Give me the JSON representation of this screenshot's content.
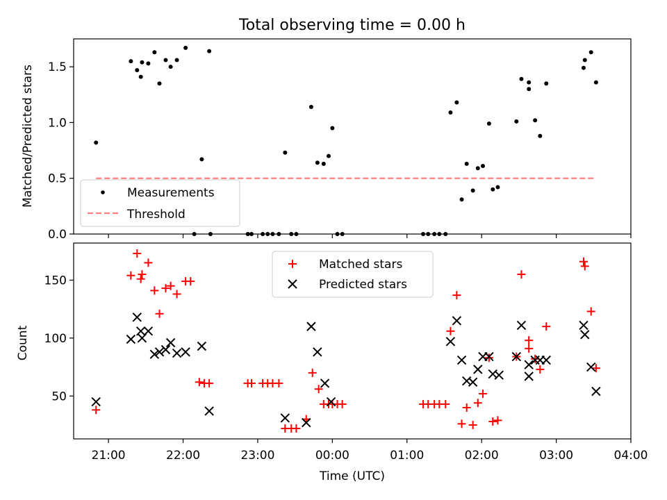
{
  "figure": {
    "title": "Total observing time = 0.00 h",
    "xlabel": "Time (UTC)"
  },
  "chart_data": [
    {
      "type": "scatter",
      "ylabel": "Matched/Predicted stars",
      "xlim": [
        "20:32",
        "04:00"
      ],
      "ylim": [
        0,
        1.75
      ],
      "yticks": [
        0.0,
        0.5,
        1.0,
        1.5
      ],
      "ytick_labels": [
        "0.0",
        "0.5",
        "1.0",
        "1.5"
      ],
      "grid": false,
      "legend": {
        "placement": "lower-left",
        "entries": [
          "Measurements",
          "Threshold"
        ]
      },
      "colors": {
        "Measurements": "#000000",
        "Threshold": "#ff7f7f"
      },
      "series": [
        {
          "name": "Measurements",
          "marker": "dot",
          "points": [
            [
              "20:50",
              0.82
            ],
            [
              "21:18",
              1.55
            ],
            [
              "21:23",
              1.47
            ],
            [
              "21:26",
              1.41
            ],
            [
              "21:27",
              1.54
            ],
            [
              "21:32",
              1.53
            ],
            [
              "21:37",
              1.63
            ],
            [
              "21:41",
              1.35
            ],
            [
              "21:46",
              1.56
            ],
            [
              "21:50",
              1.5
            ],
            [
              "21:55",
              1.56
            ],
            [
              "22:02",
              1.67
            ],
            [
              "22:09",
              0.0
            ],
            [
              "22:15",
              0.67
            ],
            [
              "22:21",
              1.64
            ],
            [
              "22:22",
              0.0
            ],
            [
              "22:52",
              0.0
            ],
            [
              "22:55",
              0.0
            ],
            [
              "23:04",
              0.0
            ],
            [
              "23:08",
              0.0
            ],
            [
              "23:12",
              0.0
            ],
            [
              "23:17",
              0.0
            ],
            [
              "23:22",
              0.73
            ],
            [
              "23:27",
              0.0
            ],
            [
              "23:31",
              0.0
            ],
            [
              "23:43",
              1.14
            ],
            [
              "23:48",
              0.64
            ],
            [
              "23:53",
              0.63
            ],
            [
              "23:57",
              0.7
            ],
            [
              "00:00",
              0.95
            ],
            [
              "00:04",
              0.0
            ],
            [
              "00:08",
              0.0
            ],
            [
              "01:13",
              0.0
            ],
            [
              "01:17",
              0.0
            ],
            [
              "01:22",
              0.0
            ],
            [
              "01:26",
              0.0
            ],
            [
              "01:31",
              0.0
            ],
            [
              "01:35",
              1.09
            ],
            [
              "01:40",
              1.18
            ],
            [
              "01:44",
              0.31
            ],
            [
              "01:48",
              0.63
            ],
            [
              "01:53",
              0.39
            ],
            [
              "01:57",
              0.59
            ],
            [
              "02:01",
              0.61
            ],
            [
              "02:06",
              0.99
            ],
            [
              "02:09",
              0.4
            ],
            [
              "02:13",
              0.42
            ],
            [
              "02:28",
              1.01
            ],
            [
              "02:32",
              1.39
            ],
            [
              "02:38",
              1.36
            ],
            [
              "02:38",
              1.3
            ],
            [
              "02:43",
              1.02
            ],
            [
              "02:47",
              0.88
            ],
            [
              "02:52",
              1.35
            ],
            [
              "03:22",
              1.49
            ],
            [
              "03:23",
              1.56
            ],
            [
              "03:28",
              1.63
            ],
            [
              "03:32",
              1.36
            ]
          ]
        },
        {
          "name": "Threshold",
          "type": "line",
          "style": "dashed",
          "points": [
            [
              "20:50",
              0.5
            ],
            [
              "03:32",
              0.5
            ]
          ]
        }
      ]
    },
    {
      "type": "scatter",
      "ylabel": "Count",
      "xlim": [
        "20:32",
        "04:00"
      ],
      "ylim": [
        13,
        182
      ],
      "yticks": [
        50,
        100,
        150
      ],
      "ytick_labels": [
        "50",
        "100",
        "150"
      ],
      "xticks": [
        "21:00",
        "22:00",
        "23:00",
        "00:00",
        "01:00",
        "02:00",
        "03:00",
        "04:00"
      ],
      "xtick_labels": [
        "21:00",
        "22:00",
        "23:00",
        "00:00",
        "01:00",
        "02:00",
        "03:00",
        "04:00"
      ],
      "grid": false,
      "legend": {
        "placement": "top-center",
        "entries": [
          "Matched stars",
          "Predicted stars"
        ]
      },
      "colors": {
        "Matched stars": "#ff0000",
        "Predicted stars": "#000000"
      },
      "series": [
        {
          "name": "Matched stars",
          "marker": "plus",
          "points": [
            [
              "20:50",
              38
            ],
            [
              "21:18",
              154
            ],
            [
              "21:23",
              173
            ],
            [
              "21:26",
              151
            ],
            [
              "21:27",
              155
            ],
            [
              "21:32",
              165
            ],
            [
              "21:37",
              141
            ],
            [
              "21:41",
              121
            ],
            [
              "21:46",
              143
            ],
            [
              "21:50",
              145
            ],
            [
              "21:55",
              138
            ],
            [
              "22:02",
              149
            ],
            [
              "22:06",
              149
            ],
            [
              "22:13",
              62
            ],
            [
              "22:17",
              61
            ],
            [
              "22:21",
              61
            ],
            [
              "22:52",
              61
            ],
            [
              "22:55",
              61
            ],
            [
              "23:04",
              61
            ],
            [
              "23:08",
              61
            ],
            [
              "23:12",
              61
            ],
            [
              "23:17",
              61
            ],
            [
              "23:22",
              22
            ],
            [
              "23:27",
              22
            ],
            [
              "23:31",
              22
            ],
            [
              "23:39",
              30
            ],
            [
              "23:44",
              70
            ],
            [
              "23:49",
              56
            ],
            [
              "23:53",
              43
            ],
            [
              "23:57",
              43
            ],
            [
              "00:00",
              43
            ],
            [
              "00:04",
              43
            ],
            [
              "00:08",
              43
            ],
            [
              "01:13",
              43
            ],
            [
              "01:17",
              43
            ],
            [
              "01:22",
              43
            ],
            [
              "01:26",
              43
            ],
            [
              "01:31",
              43
            ],
            [
              "01:35",
              106
            ],
            [
              "01:40",
              137
            ],
            [
              "01:44",
              26
            ],
            [
              "01:48",
              40
            ],
            [
              "01:53",
              25
            ],
            [
              "01:57",
              44
            ],
            [
              "02:01",
              52
            ],
            [
              "02:06",
              83
            ],
            [
              "02:09",
              28
            ],
            [
              "02:13",
              29
            ],
            [
              "02:28",
              84
            ],
            [
              "02:32",
              155
            ],
            [
              "02:38",
              91
            ],
            [
              "02:38",
              98
            ],
            [
              "02:43",
              82
            ],
            [
              "02:47",
              73
            ],
            [
              "02:52",
              110
            ],
            [
              "03:22",
              166
            ],
            [
              "03:23",
              162
            ],
            [
              "03:28",
              123
            ],
            [
              "03:32",
              74
            ]
          ]
        },
        {
          "name": "Predicted stars",
          "marker": "x",
          "points": [
            [
              "20:50",
              45
            ],
            [
              "21:18",
              99
            ],
            [
              "21:23",
              118
            ],
            [
              "21:26",
              106
            ],
            [
              "21:27",
              100
            ],
            [
              "21:32",
              106
            ],
            [
              "21:37",
              86
            ],
            [
              "21:41",
              88
            ],
            [
              "21:46",
              90
            ],
            [
              "21:50",
              96
            ],
            [
              "21:55",
              87
            ],
            [
              "22:02",
              88
            ],
            [
              "22:15",
              93
            ],
            [
              "22:21",
              37
            ],
            [
              "23:22",
              31
            ],
            [
              "23:39",
              27
            ],
            [
              "23:43",
              110
            ],
            [
              "23:48",
              88
            ],
            [
              "23:54",
              61
            ],
            [
              "23:59",
              45
            ],
            [
              "01:35",
              97
            ],
            [
              "01:40",
              115
            ],
            [
              "01:44",
              81
            ],
            [
              "01:48",
              63
            ],
            [
              "01:53",
              62
            ],
            [
              "01:57",
              73
            ],
            [
              "02:01",
              84
            ],
            [
              "02:06",
              84
            ],
            [
              "02:09",
              69
            ],
            [
              "02:14",
              68
            ],
            [
              "02:28",
              84
            ],
            [
              "02:32",
              111
            ],
            [
              "02:38",
              77
            ],
            [
              "02:38",
              67
            ],
            [
              "02:43",
              81
            ],
            [
              "02:47",
              81
            ],
            [
              "02:52",
              81
            ],
            [
              "03:22",
              111
            ],
            [
              "03:23",
              103
            ],
            [
              "03:28",
              75
            ],
            [
              "03:32",
              54
            ]
          ]
        }
      ]
    }
  ]
}
